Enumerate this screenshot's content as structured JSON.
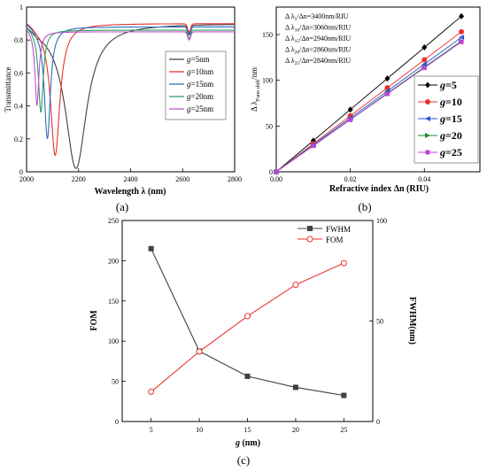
{
  "chart_data": [
    {
      "type": "line",
      "panel_label": "(a)",
      "xlabel": "Wavelength λ (nm)",
      "ylabel": "Transmittance",
      "xlim": [
        2000,
        2800
      ],
      "ylim": [
        0,
        1.0
      ],
      "xticks": [
        2000,
        2200,
        2400,
        2600,
        2800
      ],
      "yticks": [
        0.0,
        0.2,
        0.4,
        0.6,
        0.8,
        1.0
      ],
      "legend_position": "center-right",
      "series": [
        {
          "name": "g=5nm",
          "g_label": "g",
          "name_suffix": "=5nm",
          "color": "#404040",
          "x0": 2190,
          "w": 50,
          "depth": 0.88,
          "base": 0.9
        },
        {
          "name": "g=10nm",
          "g_label": "g",
          "name_suffix": "=10nm",
          "color": "#e8322d",
          "x0": 2110,
          "w": 22,
          "depth": 0.8,
          "base": 0.9
        },
        {
          "name": "g=15nm",
          "g_label": "g",
          "name_suffix": "=15nm",
          "color": "#2a6ebb",
          "x0": 2080,
          "w": 14,
          "depth": 0.68,
          "base": 0.88
        },
        {
          "name": "g=20nm",
          "g_label": "g",
          "name_suffix": "=20nm",
          "color": "#2aa55a",
          "x0": 2055,
          "w": 11,
          "depth": 0.5,
          "base": 0.86
        },
        {
          "name": "g=25nm",
          "g_label": "g",
          "name_suffix": "=25nm",
          "color": "#c050d0",
          "x0": 2040,
          "w": 9,
          "depth": 0.45,
          "base": 0.85
        }
      ]
    },
    {
      "type": "line",
      "panel_label": "(b)",
      "xlabel": "Refractive index Δn (RIU)",
      "ylabel": "Δ λ",
      "ylabel_sub": "Fano shift",
      "ylabel_unit": "/nm",
      "xlim": [
        0,
        0.055
      ],
      "ylim": [
        0,
        180
      ],
      "xticks": [
        0.0,
        0.02,
        0.04
      ],
      "xtick_labels": [
        "0.00",
        "0.02",
        "0.04"
      ],
      "yticks": [
        0,
        50,
        100,
        150
      ],
      "x": [
        0,
        0.01,
        0.02,
        0.03,
        0.04,
        0.05
      ],
      "legend_position": "bottom-right",
      "annotations": [
        {
          "pre": "Δ λ",
          "sub": "5",
          "post": "/Δn=3400nm/RIU"
        },
        {
          "pre": "Δ λ",
          "sub": "10",
          "post": "/Δn=3060nm/RIU"
        },
        {
          "pre": "Δ λ",
          "sub": "15",
          "post": "/Δn=2940nm/RIU"
        },
        {
          "pre": "Δ λ",
          "sub": "20",
          "post": "/Δn=2860nm/RIU"
        },
        {
          "pre": "Δ λ",
          "sub": "25",
          "post": "/Δn=2840nm/RIU"
        }
      ],
      "series": [
        {
          "name": "g=5",
          "g_label": "g",
          "name_suffix": "=5",
          "color": "#000000",
          "marker": "diamond",
          "y": [
            0,
            34,
            68,
            102,
            136,
            170
          ]
        },
        {
          "name": "g=10",
          "g_label": "g",
          "name_suffix": "=10",
          "color": "#e8322d",
          "marker": "circle",
          "y": [
            0,
            30.6,
            61.2,
            91.8,
            122.4,
            153
          ]
        },
        {
          "name": "g=15",
          "g_label": "g",
          "name_suffix": "=15",
          "color": "#2a52d5",
          "marker": "triangle-left",
          "y": [
            0,
            29.4,
            58.8,
            88.2,
            117.6,
            147
          ]
        },
        {
          "name": "g=20",
          "g_label": "g",
          "name_suffix": "=20",
          "color": "#1f8a2a",
          "marker": "triangle-right",
          "y": [
            0,
            28.6,
            57.2,
            85.8,
            114.4,
            143
          ]
        },
        {
          "name": "g=25",
          "g_label": "g",
          "name_suffix": "=25",
          "color": "#c040e0",
          "marker": "square",
          "y": [
            0,
            28.4,
            56.8,
            85.2,
            113.6,
            142
          ]
        }
      ]
    },
    {
      "type": "line",
      "panel_label": "(c)",
      "xlabel_italic": "g",
      "xlabel_rest": " (nm)",
      "ylabel": "FOM",
      "ylabel_right": "FWHM(nm)",
      "x": [
        5,
        10,
        15,
        20,
        25
      ],
      "xlim": [
        2,
        28
      ],
      "ylim": [
        0,
        250
      ],
      "ylim_right": [
        0,
        100
      ],
      "xticks": [
        5,
        10,
        15,
        20,
        25
      ],
      "yticks": [
        0,
        50,
        100,
        150,
        200,
        250
      ],
      "yticks_right": [
        0,
        50,
        100
      ],
      "legend_position": "top-right",
      "series": [
        {
          "name": "FWHM",
          "axis": "right",
          "color": "#404040",
          "marker": "square-filled",
          "y": [
            86,
            35,
            22.5,
            17,
            13
          ]
        },
        {
          "name": "FOM",
          "axis": "left",
          "color": "#e8322d",
          "marker": "circle-open",
          "y": [
            37,
            87,
            131,
            170,
            197
          ]
        }
      ]
    }
  ]
}
